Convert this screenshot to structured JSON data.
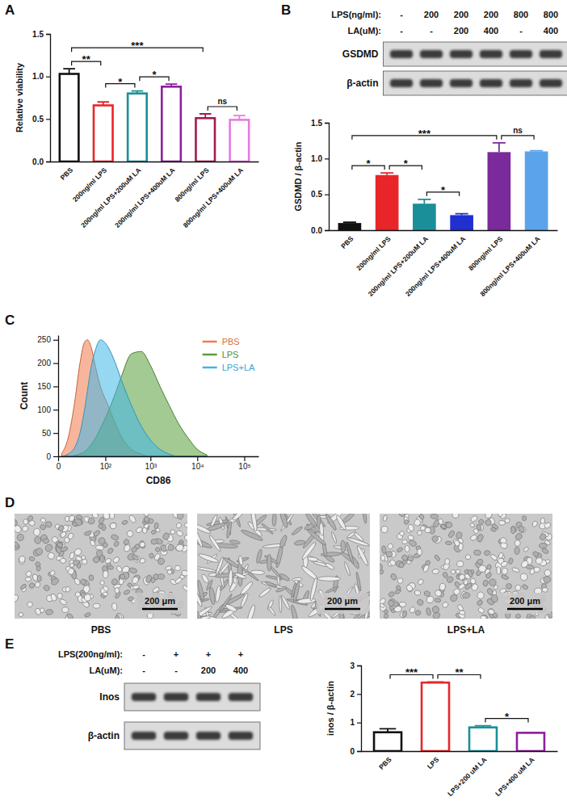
{
  "panel_labels": [
    "A",
    "B",
    "C",
    "D",
    "E"
  ],
  "chart_data": [
    {
      "type": "bar",
      "categories": [
        "PBS",
        "200ng/ml LPS",
        "200ng/ml LPS+200uM LA",
        "200ng/ml LPS+400uM LA",
        "800ng/ml LPS",
        "800ng/ml LPS+400uM LA"
      ],
      "values": [
        1.03,
        0.66,
        0.8,
        0.88,
        0.51,
        0.49
      ],
      "errors": [
        0.06,
        0.04,
        0.03,
        0.03,
        0.05,
        0.05
      ],
      "colors": [
        "#111111",
        "#e8262a",
        "#1a8f9a",
        "#8e1f9e",
        "#a31b4f",
        "#e77ae3"
      ],
      "ylabel": "Relative viability",
      "ylim": [
        0,
        1.5
      ],
      "yticks": [
        {
          "value": 0,
          "label": "0.0"
        },
        0.5,
        {
          "value": 1,
          "label": "1.0"
        },
        1.5
      ],
      "significance": [
        {
          "from": 0,
          "to": 1,
          "label": "**"
        },
        {
          "from": 1,
          "to": 2,
          "label": "*"
        },
        {
          "from": 2,
          "to": 3,
          "label": "*"
        },
        {
          "from": 0,
          "to": 4,
          "label": "***"
        },
        {
          "from": 4,
          "to": 5,
          "label": "ns"
        }
      ]
    },
    {
      "type": "bar",
      "categories": [
        "PBS",
        "200ng/ml LPS",
        "200ng/ml LPS+200uM LA",
        "200ng/ml LPS+400uM LA",
        "800ng/ml LPS",
        "800ng/ml LPS+400uM LA"
      ],
      "values": [
        0.1,
        0.77,
        0.37,
        0.21,
        1.09,
        1.1
      ],
      "errors": [
        0.01,
        0.03,
        0.06,
        0.02,
        0.13,
        0.01
      ],
      "colors": [
        "#111111",
        "#e8262a",
        "#1a8f9a",
        "#1f2fd0",
        "#7a2a9a",
        "#5ba3ea"
      ],
      "ylabel": "GSDMD / β-actin",
      "ylim": [
        0,
        1.5
      ],
      "yticks": [
        {
          "value": 0,
          "label": "0.0"
        },
        0.5,
        {
          "value": 1,
          "label": "1.0"
        },
        1.5
      ],
      "significance": [
        {
          "from": 0,
          "to": 1,
          "label": "*"
        },
        {
          "from": 1,
          "to": 2,
          "label": "*"
        },
        {
          "from": 2,
          "to": 3,
          "label": "*"
        },
        {
          "from": 0,
          "to": 4,
          "label": "***"
        },
        {
          "from": 4,
          "to": 5,
          "label": "ns"
        }
      ]
    },
    {
      "type": "area",
      "x": [
        2,
        7,
        14,
        21,
        29,
        35,
        44,
        58,
        76,
        115,
        170,
        240,
        385,
        630,
        1000,
        1600,
        2500,
        4000,
        6300,
        10000,
        16000
      ],
      "series": [
        {
          "name": "PBS",
          "color": "#f07a4a",
          "values": [
            5,
            40,
            120,
            200,
            245,
            250,
            235,
            190,
            150,
            110,
            70,
            40,
            15,
            5,
            0,
            0,
            0,
            0,
            0,
            0,
            0
          ]
        },
        {
          "name": "LPS",
          "color": "#5a9e3a",
          "values": [
            0,
            0,
            2,
            5,
            10,
            15,
            25,
            40,
            60,
            95,
            135,
            175,
            220,
            225,
            195,
            150,
            110,
            70,
            40,
            15,
            3
          ]
        },
        {
          "name": "LPS+LA",
          "color": "#3fb7e8",
          "values": [
            0,
            5,
            20,
            50,
            100,
            140,
            190,
            230,
            250,
            235,
            200,
            160,
            110,
            65,
            35,
            15,
            5,
            0,
            0,
            0,
            0
          ]
        }
      ],
      "xlabel": "CD86",
      "ylabel": "Count",
      "xlim": [
        0,
        200000
      ],
      "xticks": [
        0,
        {
          "value": 100,
          "label": "10²"
        },
        {
          "value": 1000,
          "label": "10³"
        },
        {
          "value": 10000,
          "label": "10⁴"
        },
        {
          "value": 100000,
          "label": "10⁵"
        }
      ],
      "ylim": [
        0,
        260
      ],
      "yticks": [
        0,
        50,
        100,
        150,
        200,
        250
      ],
      "log": "x",
      "legend": "top-right"
    },
    {
      "type": "bar",
      "categories": [
        "PBS",
        "LPS",
        "LPS+200 uM LA",
        "LPS+400 uM LA"
      ],
      "values": [
        0.66,
        2.4,
        0.83,
        0.64
      ],
      "errors": [
        0.12,
        0.02,
        0.06,
        0.01
      ],
      "colors": [
        "#111111",
        "#e8262a",
        "#1a8f9a",
        "#8e1f9e"
      ],
      "ylabel": "inos / β-actin",
      "ylim": [
        0,
        3
      ],
      "yticks": [
        0,
        1,
        2,
        3
      ],
      "significance": [
        {
          "from": 0,
          "to": 1,
          "label": "***"
        },
        {
          "from": 1,
          "to": 2,
          "label": "**"
        },
        {
          "from": 2,
          "to": 3,
          "label": "*"
        }
      ]
    }
  ],
  "blots": [
    {
      "conditions": [
        {
          "label": "LPS(ng/ml):",
          "lanes": [
            "-",
            "200",
            "200",
            "200",
            "800",
            "800"
          ]
        },
        {
          "label": "LA(uM):",
          "lanes": [
            "-",
            "-",
            "200",
            "400",
            "-",
            "400"
          ]
        }
      ],
      "rows": [
        "GSDMD",
        "β-actin"
      ]
    },
    {
      "conditions": [
        {
          "label": "LPS(200ng/ml):",
          "lanes": [
            "-",
            "+",
            "+",
            "+"
          ]
        },
        {
          "label": "LA(uM):",
          "lanes": [
            "-",
            "-",
            "200",
            "400"
          ]
        }
      ],
      "rows": [
        "Inos",
        "β-actin"
      ]
    }
  ],
  "micrographs": {
    "captions": [
      "PBS",
      "LPS",
      "LPS+LA"
    ],
    "scale_bar": "200 μm"
  }
}
